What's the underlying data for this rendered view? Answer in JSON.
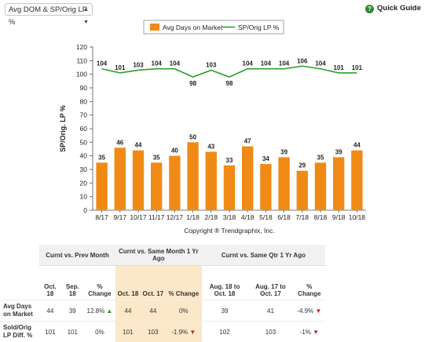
{
  "selector": {
    "label": "Avg DOM & SP/Orig LP %"
  },
  "quick_guide": {
    "label": "Quick Guide"
  },
  "chart_data": {
    "type": "bar",
    "categories": [
      "8/17",
      "9/17",
      "10/17",
      "11/17",
      "12/17",
      "1/18",
      "2/18",
      "3/18",
      "4/18",
      "5/18",
      "6/18",
      "7/18",
      "8/18",
      "9/18",
      "10/18"
    ],
    "series": [
      {
        "name": "Avg Days on Market",
        "type": "bar",
        "color": "#f08a17",
        "values": [
          35,
          46,
          44,
          35,
          40,
          50,
          43,
          33,
          47,
          34,
          39,
          29,
          35,
          39,
          44
        ]
      },
      {
        "name": "SP/Orig LP %",
        "type": "line",
        "color": "#2aa02a",
        "values": [
          104,
          101,
          103,
          104,
          104,
          98,
          103,
          98,
          104,
          104,
          104,
          106,
          104,
          101,
          101
        ]
      }
    ],
    "ylabel": "SP/Orig. LP %",
    "ylim": [
      0,
      120
    ],
    "yticks": [
      0,
      10,
      20,
      30,
      40,
      50,
      60,
      70,
      80,
      90,
      100,
      110,
      120
    ],
    "grid": false,
    "legend_position": "top",
    "copyright": "Copyright ® Trendgraphix, Inc."
  },
  "table": {
    "groups": [
      "Curnt vs. Prev Month",
      "Curnt vs. Same Month 1 Yr Ago",
      "Curnt vs. Same Qtr 1 Yr Ago"
    ],
    "columns": [
      "Oct. 18",
      "Sep. 18",
      "% Change",
      "Oct. 18",
      "Oct. 17",
      "% Change",
      "Aug. 18 to Oct. 18",
      "Aug. 17 to Oct. 17",
      "% Change"
    ],
    "rows": [
      {
        "label": "Avg Days on Market",
        "cells": [
          "44",
          "39",
          "12.8%",
          "44",
          "44",
          "0%",
          "39",
          "41",
          "-4.9%"
        ],
        "arrows": [
          "",
          "",
          "up",
          "",
          "",
          "",
          "",
          "",
          "down"
        ]
      },
      {
        "label": "Sold/Orig LP Diff. %",
        "cells": [
          "101",
          "101",
          "0%",
          "101",
          "103",
          "-1.9%",
          "102",
          "103",
          "-1%"
        ],
        "arrows": [
          "",
          "",
          "",
          "",
          "",
          "down",
          "",
          "",
          "down"
        ]
      }
    ]
  }
}
